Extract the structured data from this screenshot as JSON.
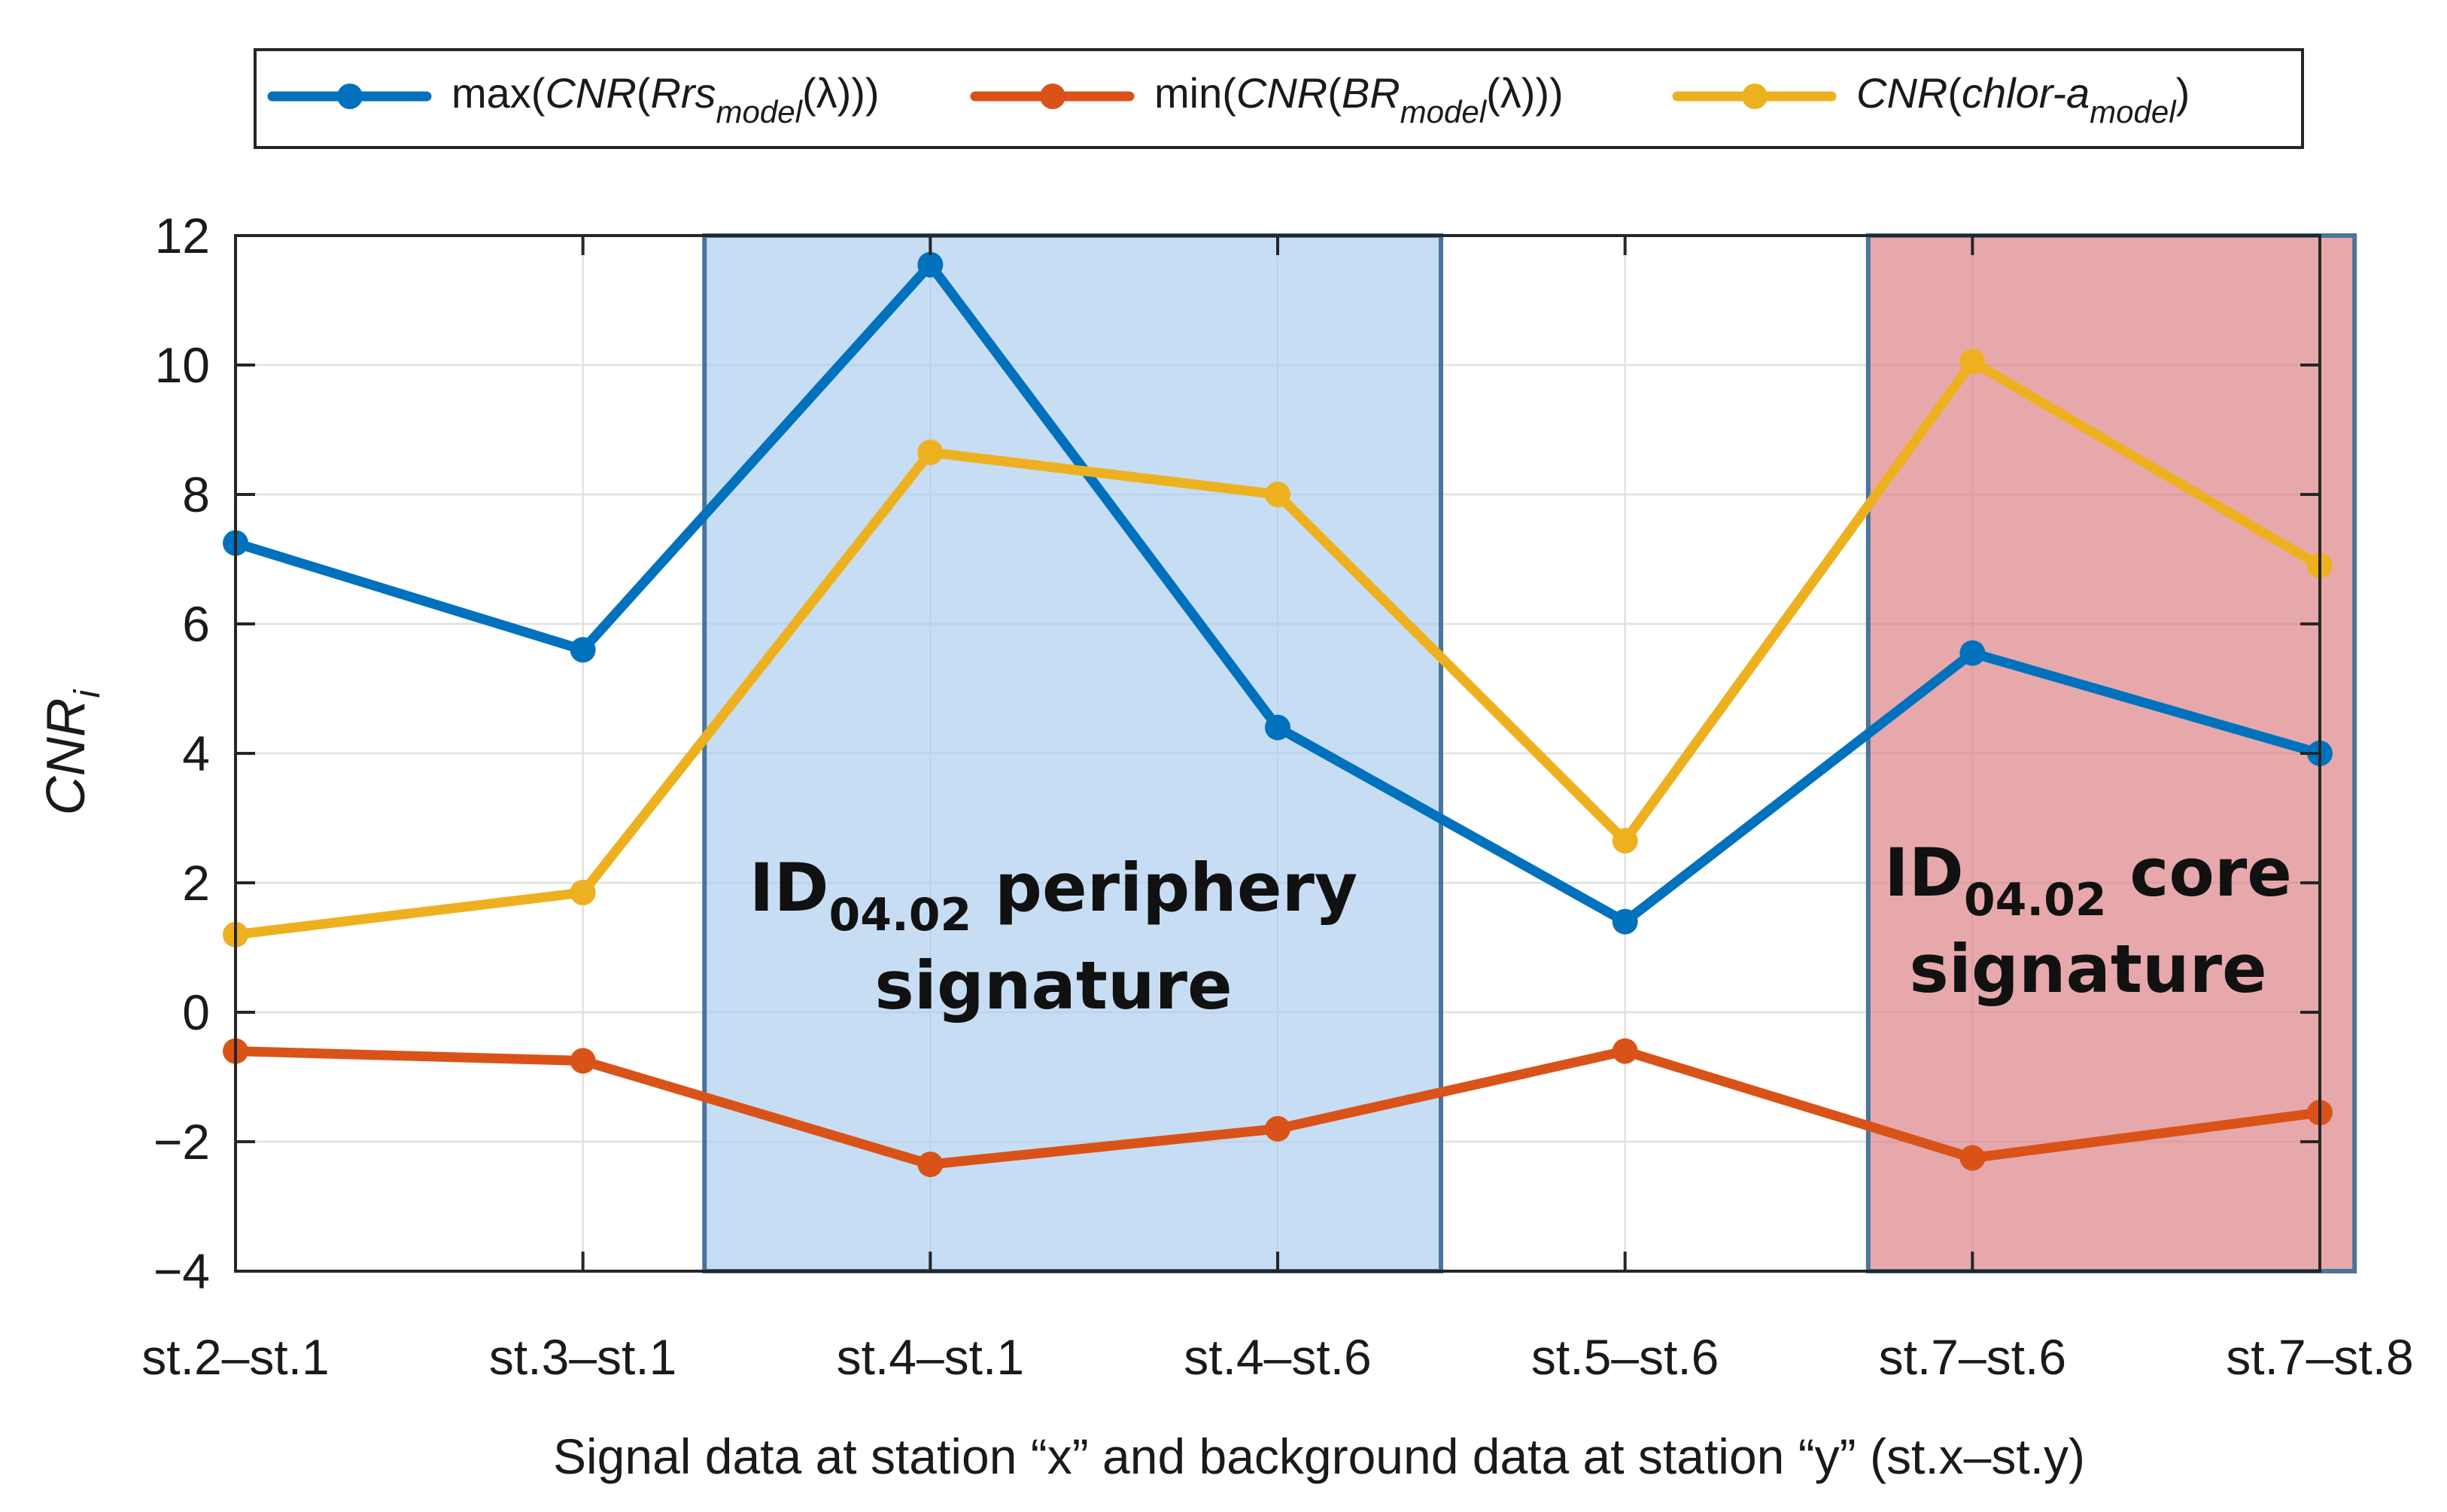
{
  "chart_data": {
    "type": "line",
    "categories": [
      "st.2–st.1",
      "st.3–st.1",
      "st.4–st.1",
      "st.4–st.6",
      "st.5–st.6",
      "st.7–st.6",
      "st.7–st.8"
    ],
    "series": [
      {
        "name": "max(CNR(Rrs_model(λ)))",
        "legend": {
          "pre": "max(",
          "italic": "CNR",
          "mid": "(",
          "italic2": "Rrs",
          "sub": "model",
          "post": "(λ)))"
        },
        "color": "#0072BD",
        "values": [
          7.25,
          5.6,
          11.55,
          4.4,
          1.4,
          5.55,
          4.0
        ]
      },
      {
        "name": "min(CNR(BR_model(λ)))",
        "legend": {
          "pre": "min(",
          "italic": "CNR",
          "mid": "(",
          "italic2": "BR",
          "sub": "model",
          "post": "(λ)))"
        },
        "color": "#D95319",
        "values": [
          -0.6,
          -0.75,
          -2.35,
          -1.8,
          -0.6,
          -2.25,
          -1.55
        ]
      },
      {
        "name": "CNR(chlor-a_model)",
        "legend": {
          "pre": "",
          "italic": "CNR",
          "mid": "(",
          "italic2": "chlor-a",
          "sub": "model",
          "post": ")"
        },
        "color": "#EDB120",
        "values": [
          1.2,
          1.85,
          8.65,
          8.0,
          2.65,
          10.05,
          6.9
        ]
      }
    ],
    "ylim": [
      -4,
      12
    ],
    "yticks": [
      -4,
      -2,
      0,
      2,
      4,
      6,
      8,
      10,
      12
    ],
    "ytick_labels": [
      "−4",
      "−2",
      "0",
      "2",
      "4",
      "6",
      "8",
      "10",
      "12"
    ],
    "ylabel": {
      "main": "CNR",
      "sub": "i"
    },
    "xlabel": "Signal data at station “x” and background data at station “y” (st.x–st.y)",
    "grid": true,
    "legend_position": "top",
    "regions": [
      {
        "from": 1.35,
        "to": 3.47,
        "fill": "#A9CBEC",
        "opacity": 0.65,
        "stroke": "#4A7499",
        "label": {
          "prefix": "ID",
          "sub": "04.02",
          "line1_rest": " periphery",
          "line2": "signature"
        }
      },
      {
        "from": 4.7,
        "to": 6.1,
        "fill": "#DA7A7E",
        "opacity": 0.65,
        "stroke": "#4A7499",
        "label": {
          "prefix": "ID",
          "sub": "04.02",
          "line1_rest": " core",
          "line2": "signature"
        }
      }
    ]
  }
}
